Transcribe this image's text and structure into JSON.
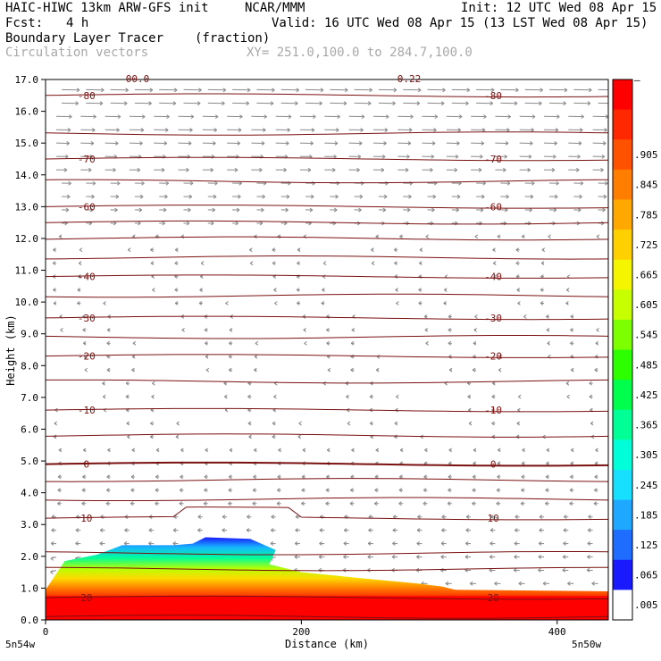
{
  "header": {
    "model": "HAIC-HIWC 13km ARW-GFS init",
    "org": "NCAR/MMM",
    "init": "Init: 12 UTC Wed 08 Apr 15",
    "fcst_label": "Fcst:",
    "fcst_value": "4 h",
    "valid": "Valid: 16 UTC Wed 08 Apr 15 (13 LST Wed 08 Apr 15)",
    "field": "Boundary Layer Tracer",
    "units": "(fraction)",
    "overlay": "Circulation vectors",
    "xy": "XY= 251.0,100.0 to 284.7,100.0"
  },
  "chart_data": {
    "type": "heatmap",
    "title": "Boundary Layer Tracer",
    "xlabel": "Distance (km)",
    "ylabel": "Height (km)",
    "xlim": [
      0,
      440
    ],
    "ylim": [
      0,
      17
    ],
    "x_ticks": [
      "0",
      "200",
      "400"
    ],
    "y_ticks": [
      "0.0",
      "1.0",
      "2.0",
      "3.0",
      "4.0",
      "5.0",
      "6.0",
      "7.0",
      "8.0",
      "9.0",
      "10.0",
      "11.0",
      "12.0",
      "13.0",
      "14.0",
      "15.0",
      "16.0",
      "17.0"
    ],
    "x_endpoint_labels": {
      "left": "5n54w",
      "right": "5n50w"
    },
    "colorbar_labels": [
      ".005",
      ".065",
      ".125",
      ".185",
      ".245",
      ".305",
      ".365",
      ".425",
      ".485",
      ".545",
      ".605",
      ".665",
      ".725",
      ".785",
      ".845",
      ".905"
    ],
    "colorbar_top_label": "–",
    "colorbar_colors": [
      "#ffffff",
      "#1a1aff",
      "#1f6dff",
      "#1fa8ff",
      "#17e0ff",
      "#00ffd8",
      "#00ff96",
      "#00ff4c",
      "#2dff00",
      "#7dff00",
      "#c7ff00",
      "#f5f500",
      "#ffd000",
      "#ffa800",
      "#ff7e00",
      "#ff5200",
      "#ff2800",
      "#ff0000"
    ],
    "cut_off_top_labels": [
      "00.0",
      "0.22"
    ],
    "tracer_top_profile": [
      [
        0,
        0.95
      ],
      [
        15,
        1.85
      ],
      [
        40,
        2.05
      ],
      [
        60,
        2.35
      ],
      [
        100,
        2.35
      ],
      [
        115,
        2.4
      ],
      [
        125,
        2.6
      ],
      [
        160,
        2.55
      ],
      [
        180,
        2.2
      ],
      [
        175,
        1.75
      ],
      [
        200,
        1.5
      ],
      [
        250,
        1.3
      ],
      [
        290,
        1.15
      ],
      [
        310,
        1.05
      ],
      [
        320,
        0.95
      ],
      [
        440,
        0.9
      ]
    ],
    "contour_series": [
      {
        "level": "-80",
        "height_km": 16.5
      },
      {
        "level": "-70",
        "height_km": 14.5
      },
      {
        "level": "-60",
        "height_km": 13.0
      },
      {
        "level": "-40",
        "height_km": 10.8
      },
      {
        "level": "-30",
        "height_km": 9.5
      },
      {
        "level": "-20",
        "height_km": 8.3
      },
      {
        "level": "-10",
        "height_km": 6.6
      },
      {
        "level": "0",
        "height_km": 4.9
      },
      {
        "level": "10",
        "height_km": 3.2
      },
      {
        "level": "20",
        "height_km": 0.7
      }
    ],
    "grid": false
  }
}
